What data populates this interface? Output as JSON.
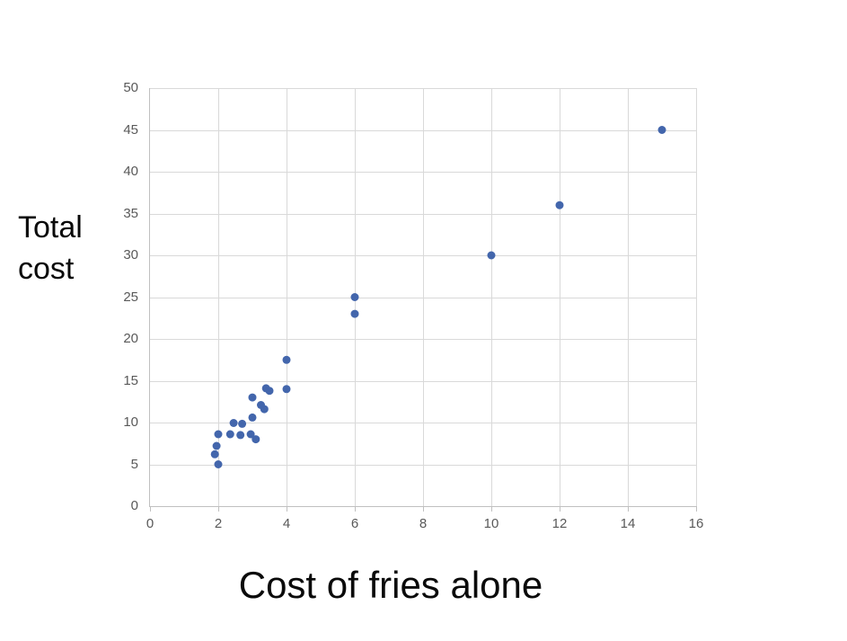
{
  "chart_data": {
    "type": "scatter",
    "title": "",
    "xlabel": "Cost of fries alone",
    "ylabel": "Total\ncost",
    "xlim": [
      0,
      16
    ],
    "ylim": [
      0,
      50
    ],
    "x_ticks": [
      0,
      2,
      4,
      6,
      8,
      10,
      12,
      14,
      16
    ],
    "y_ticks": [
      0,
      5,
      10,
      15,
      20,
      25,
      30,
      35,
      40,
      45,
      50
    ],
    "grid": true,
    "legend": "none",
    "points": [
      [
        1.9,
        6.2
      ],
      [
        1.95,
        7.2
      ],
      [
        2,
        5
      ],
      [
        2,
        8.6
      ],
      [
        2.35,
        8.6
      ],
      [
        2.65,
        8.5
      ],
      [
        2.95,
        8.6
      ],
      [
        3.1,
        8.0
      ],
      [
        2.45,
        9.95
      ],
      [
        2.7,
        9.85
      ],
      [
        3.0,
        10.6
      ],
      [
        3.25,
        12.1
      ],
      [
        3.35,
        11.6
      ],
      [
        3.0,
        13.0
      ],
      [
        3.4,
        14.1
      ],
      [
        3.5,
        13.8
      ],
      [
        4,
        14
      ],
      [
        4,
        17.5
      ],
      [
        6,
        23
      ],
      [
        6,
        25
      ],
      [
        10,
        30
      ],
      [
        12,
        36
      ],
      [
        15,
        45
      ]
    ],
    "colors": {
      "marker": "#4366ac",
      "gridline": "#d9d9d9",
      "axis_line": "#c0c0c0",
      "tick_label": "#595959",
      "axis_title": "#0a0a0a",
      "background": "#ffffff"
    },
    "marker_radius": 4.5
  }
}
